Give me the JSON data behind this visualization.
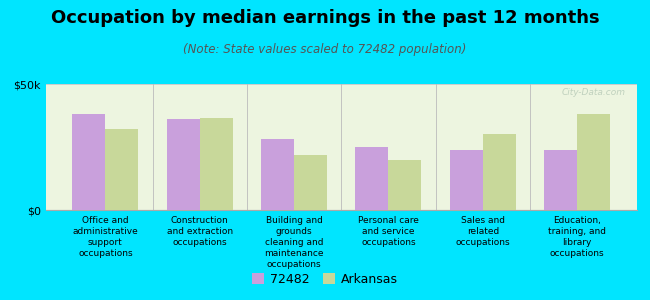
{
  "title": "Occupation by median earnings in the past 12 months",
  "subtitle": "(Note: State values scaled to 72482 population)",
  "categories": [
    "Office and\nadministrative\nsupport\noccupations",
    "Construction\nand extraction\noccupations",
    "Building and\ngrounds\ncleaning and\nmaintenance\noccupations",
    "Personal care\nand service\noccupations",
    "Sales and\nrelated\noccupations",
    "Education,\ntraining, and\nlibrary\noccupations"
  ],
  "values_72482": [
    38000,
    36000,
    28000,
    25000,
    24000,
    24000
  ],
  "values_arkansas": [
    32000,
    36500,
    22000,
    20000,
    30000,
    38000
  ],
  "color_72482": "#c9a0dc",
  "color_arkansas": "#c8d89a",
  "legend_labels": [
    "72482",
    "Arkansas"
  ],
  "ylim": [
    0,
    50000
  ],
  "ytick_labels": [
    "$0",
    "$50k"
  ],
  "background_color": "#00e5ff",
  "plot_bg": "#edf5e0",
  "watermark": "City-Data.com",
  "bar_width": 0.35,
  "title_fontsize": 13,
  "subtitle_fontsize": 8.5,
  "tick_fontsize": 8,
  "legend_fontsize": 9,
  "divider_color": "#bbbbbb",
  "spine_color": "#aaaaaa"
}
